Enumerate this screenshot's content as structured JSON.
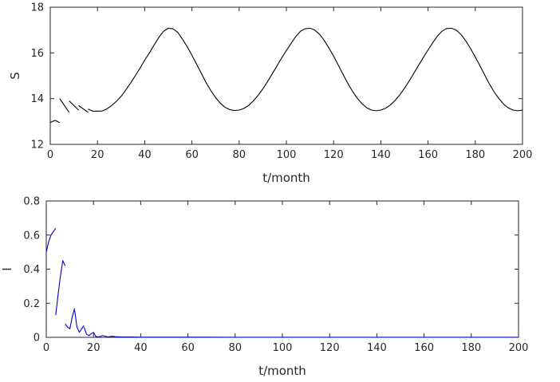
{
  "chart_data": [
    {
      "type": "line",
      "title": "",
      "xlabel": "t/month",
      "ylabel": "S",
      "xlim": [
        0,
        200
      ],
      "ylim": [
        12,
        18
      ],
      "xticks": [
        0,
        20,
        40,
        60,
        80,
        100,
        120,
        140,
        160,
        180,
        200
      ],
      "yticks": [
        12,
        14,
        16,
        18
      ],
      "grid": false,
      "legend": "none",
      "color": "#000000",
      "series": [
        {
          "segments": [
            [
              [
                0,
                12.95
              ],
              [
                2,
                13.05
              ],
              [
                4,
                12.95
              ]
            ],
            [
              [
                4,
                14.0
              ],
              [
                6,
                13.7
              ],
              [
                8,
                13.4
              ]
            ],
            [
              [
                8,
                13.9
              ],
              [
                10,
                13.7
              ],
              [
                12,
                13.5
              ]
            ],
            [
              [
                12,
                13.7
              ],
              [
                14,
                13.55
              ],
              [
                16,
                13.4
              ]
            ],
            [
              [
                16,
                13.55
              ],
              [
                18,
                13.45
              ],
              [
                20,
                13.45
              ],
              [
                22,
                13.46
              ],
              [
                24,
                13.55
              ],
              [
                26,
                13.7
              ],
              [
                28,
                13.88
              ],
              [
                30,
                14.1
              ],
              [
                32,
                14.38
              ],
              [
                34,
                14.68
              ],
              [
                36,
                15.0
              ],
              [
                38,
                15.33
              ],
              [
                40,
                15.68
              ],
              [
                42,
                16.0
              ],
              [
                44,
                16.35
              ],
              [
                46,
                16.68
              ],
              [
                48,
                16.95
              ],
              [
                50,
                17.08
              ],
              [
                52,
                17.05
              ],
              [
                54,
                16.9
              ],
              [
                56,
                16.6
              ],
              [
                58,
                16.27
              ],
              [
                60,
                15.9
              ],
              [
                62,
                15.5
              ],
              [
                64,
                15.1
              ],
              [
                66,
                14.7
              ],
              [
                68,
                14.35
              ],
              [
                70,
                14.05
              ],
              [
                72,
                13.8
              ],
              [
                74,
                13.62
              ],
              [
                76,
                13.52
              ],
              [
                78,
                13.48
              ],
              [
                80,
                13.5
              ],
              [
                82,
                13.57
              ],
              [
                84,
                13.7
              ],
              [
                86,
                13.9
              ],
              [
                88,
                14.14
              ],
              [
                90,
                14.42
              ],
              [
                92,
                14.74
              ],
              [
                94,
                15.08
              ],
              [
                96,
                15.43
              ],
              [
                98,
                15.78
              ],
              [
                100,
                16.1
              ],
              [
                102,
                16.42
              ],
              [
                104,
                16.72
              ],
              [
                106,
                16.95
              ],
              [
                108,
                17.06
              ],
              [
                110,
                17.08
              ],
              [
                112,
                17.0
              ],
              [
                114,
                16.82
              ],
              [
                116,
                16.55
              ],
              [
                118,
                16.22
              ],
              [
                120,
                15.86
              ],
              [
                122,
                15.46
              ],
              [
                124,
                15.06
              ],
              [
                126,
                14.67
              ],
              [
                128,
                14.32
              ],
              [
                130,
                14.02
              ],
              [
                132,
                13.78
              ],
              [
                134,
                13.6
              ],
              [
                136,
                13.5
              ],
              [
                138,
                13.47
              ],
              [
                140,
                13.5
              ],
              [
                142,
                13.58
              ],
              [
                144,
                13.72
              ],
              [
                146,
                13.92
              ],
              [
                148,
                14.16
              ],
              [
                150,
                14.45
              ],
              [
                152,
                14.77
              ],
              [
                154,
                15.11
              ],
              [
                156,
                15.46
              ],
              [
                158,
                15.8
              ],
              [
                160,
                16.13
              ],
              [
                162,
                16.45
              ],
              [
                164,
                16.74
              ],
              [
                166,
                16.96
              ],
              [
                168,
                17.07
              ],
              [
                170,
                17.08
              ],
              [
                172,
                16.99
              ],
              [
                174,
                16.8
              ],
              [
                176,
                16.52
              ],
              [
                178,
                16.19
              ],
              [
                180,
                15.82
              ],
              [
                182,
                15.43
              ],
              [
                184,
                15.03
              ],
              [
                186,
                14.64
              ],
              [
                188,
                14.29
              ],
              [
                190,
                14.0
              ],
              [
                192,
                13.76
              ],
              [
                194,
                13.59
              ],
              [
                196,
                13.5
              ],
              [
                198,
                13.47
              ],
              [
                200,
                13.5
              ]
            ]
          ]
        }
      ]
    },
    {
      "type": "line",
      "title": "",
      "xlabel": "t/month",
      "ylabel": "I",
      "xlim": [
        0,
        200
      ],
      "ylim": [
        0,
        0.8
      ],
      "xticks": [
        0,
        20,
        40,
        60,
        80,
        100,
        120,
        140,
        160,
        180,
        200
      ],
      "yticks": [
        0,
        0.2,
        0.4,
        0.6,
        0.8
      ],
      "grid": false,
      "legend": "none",
      "color": "#0000cc",
      "series": [
        {
          "segments": [
            [
              [
                0,
                0.5
              ],
              [
                1,
                0.56
              ],
              [
                2,
                0.6
              ],
              [
                3,
                0.62
              ],
              [
                4,
                0.64
              ]
            ],
            [
              [
                4,
                0.13
              ],
              [
                5,
                0.25
              ],
              [
                6,
                0.36
              ],
              [
                7,
                0.45
              ],
              [
                8,
                0.42
              ]
            ],
            [
              [
                8,
                0.08
              ],
              [
                9,
                0.06
              ],
              [
                10,
                0.05
              ],
              [
                11,
                0.12
              ],
              [
                12,
                0.17
              ]
            ],
            [
              [
                12,
                0.16
              ],
              [
                13,
                0.06
              ],
              [
                14,
                0.03
              ],
              [
                15,
                0.05
              ],
              [
                16,
                0.07
              ]
            ],
            [
              [
                16,
                0.06
              ],
              [
                17,
                0.02
              ],
              [
                18,
                0.01
              ],
              [
                19,
                0.02
              ],
              [
                20,
                0.03
              ]
            ],
            [
              [
                20,
                0.03
              ],
              [
                21,
                0.005
              ],
              [
                22,
                0.003
              ],
              [
                23,
                0.005
              ],
              [
                24,
                0.012
              ]
            ],
            [
              [
                24,
                0.01
              ],
              [
                26,
                0.003
              ],
              [
                28,
                0.006
              ],
              [
                30,
                0.003
              ],
              [
                32,
                0.002
              ],
              [
                36,
                0.002
              ],
              [
                40,
                0.001
              ],
              [
                60,
                0.0008
              ],
              [
                80,
                0.0006
              ],
              [
                100,
                0.0005
              ],
              [
                120,
                0.0005
              ],
              [
                140,
                0.0005
              ],
              [
                160,
                0.0005
              ],
              [
                180,
                0.0005
              ],
              [
                200,
                0.0005
              ]
            ]
          ]
        }
      ]
    }
  ]
}
